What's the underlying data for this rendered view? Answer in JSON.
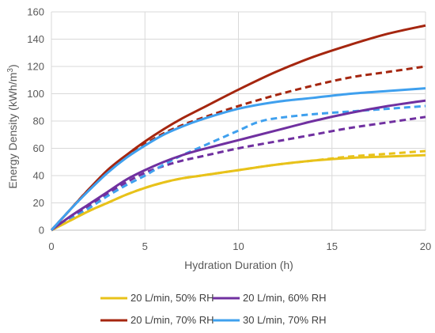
{
  "chart_data": {
    "type": "line",
    "title": "",
    "xlabel": "Hydration Duration (h)",
    "ylabel": "Energy Density (kWh/m",
    "ylabel_sup": "3",
    "ylabel_close": ")",
    "xlim": [
      0,
      20
    ],
    "ylim": [
      0,
      160
    ],
    "xticks": [
      0,
      5,
      10,
      15,
      20
    ],
    "yticks": [
      0,
      20,
      40,
      60,
      80,
      100,
      120,
      140,
      160
    ],
    "grid": true,
    "legend_position": "bottom",
    "legend": [
      {
        "label": "20 L/min, 50% RH",
        "color": "#E8C21A"
      },
      {
        "label": "20 L/min, 60% RH",
        "color": "#7030A0"
      },
      {
        "label": "20 L/min, 70% RH",
        "color": "#A5260F"
      },
      {
        "label": "30 L/min, 70% RH",
        "color": "#3FA0EE"
      }
    ],
    "series": [
      {
        "name": "20 L/min, 50% RH",
        "color": "#E8C21A",
        "style": "solid",
        "x": [
          0,
          1,
          2,
          3,
          4,
          5,
          6,
          7,
          8,
          10,
          12,
          14,
          16,
          18,
          20
        ],
        "y": [
          0,
          7,
          14,
          20,
          26,
          31,
          35,
          38,
          40,
          44,
          48,
          51,
          53,
          54,
          55
        ]
      },
      {
        "color": "#E8C21A",
        "style": "dashed",
        "x": [
          0,
          1,
          2,
          3,
          4,
          5,
          6,
          7,
          8,
          10,
          12,
          14,
          16,
          18,
          20
        ],
        "y": [
          0,
          7,
          14,
          20,
          26,
          31,
          35,
          38,
          40,
          44,
          48,
          51,
          54,
          56,
          58
        ]
      },
      {
        "name": "20 L/min, 60% RH",
        "color": "#7030A0",
        "style": "solid",
        "x": [
          0,
          1,
          2,
          3,
          4,
          5,
          6,
          7,
          8,
          10,
          12,
          14,
          16,
          18,
          20
        ],
        "y": [
          0,
          10,
          19,
          28,
          37,
          44,
          50,
          55,
          59,
          66,
          73,
          80,
          86,
          91,
          95
        ]
      },
      {
        "color": "#7030A0",
        "style": "dashed",
        "x": [
          0,
          1,
          2,
          3,
          4,
          5,
          6,
          7,
          8,
          10,
          12,
          14,
          16,
          18,
          20
        ],
        "y": [
          0,
          9,
          18,
          27,
          35,
          42,
          47,
          51,
          54,
          60,
          65,
          70,
          75,
          79,
          83
        ]
      },
      {
        "name": "20 L/min, 70% RH",
        "color": "#A5260F",
        "style": "solid",
        "x": [
          0,
          1,
          2,
          3,
          4,
          5,
          6,
          7,
          8,
          10,
          12,
          14,
          16,
          18,
          20
        ],
        "y": [
          0,
          15,
          30,
          44,
          55,
          65,
          74,
          82,
          89,
          103,
          116,
          127,
          136,
          144,
          150
        ]
      },
      {
        "color": "#A5260F",
        "style": "dashed",
        "x": [
          0,
          1,
          2,
          3,
          4,
          5,
          6,
          7,
          8,
          10,
          12,
          14,
          16,
          18,
          20
        ],
        "y": [
          0,
          15,
          30,
          43,
          54,
          63,
          71,
          77,
          82,
          91,
          99,
          106,
          112,
          116,
          120
        ]
      },
      {
        "name": "30 L/min, 70% RH",
        "color": "#3FA0EE",
        "style": "solid",
        "x": [
          0,
          1,
          2,
          3,
          4,
          5,
          6,
          7,
          8,
          10,
          12,
          14,
          16,
          18,
          20
        ],
        "y": [
          0,
          15,
          29,
          42,
          53,
          62,
          70,
          76,
          81,
          89,
          94,
          97,
          100,
          102,
          104
        ]
      },
      {
        "color": "#3FA0EE",
        "style": "dashed",
        "x": [
          0,
          1,
          2,
          3,
          4,
          5,
          6,
          7,
          8,
          10,
          11,
          12,
          14,
          16,
          18,
          20
        ],
        "y": [
          0,
          8,
          16,
          25,
          33,
          40,
          48,
          55,
          61,
          73,
          79,
          82,
          85,
          87,
          89,
          91
        ]
      }
    ]
  }
}
